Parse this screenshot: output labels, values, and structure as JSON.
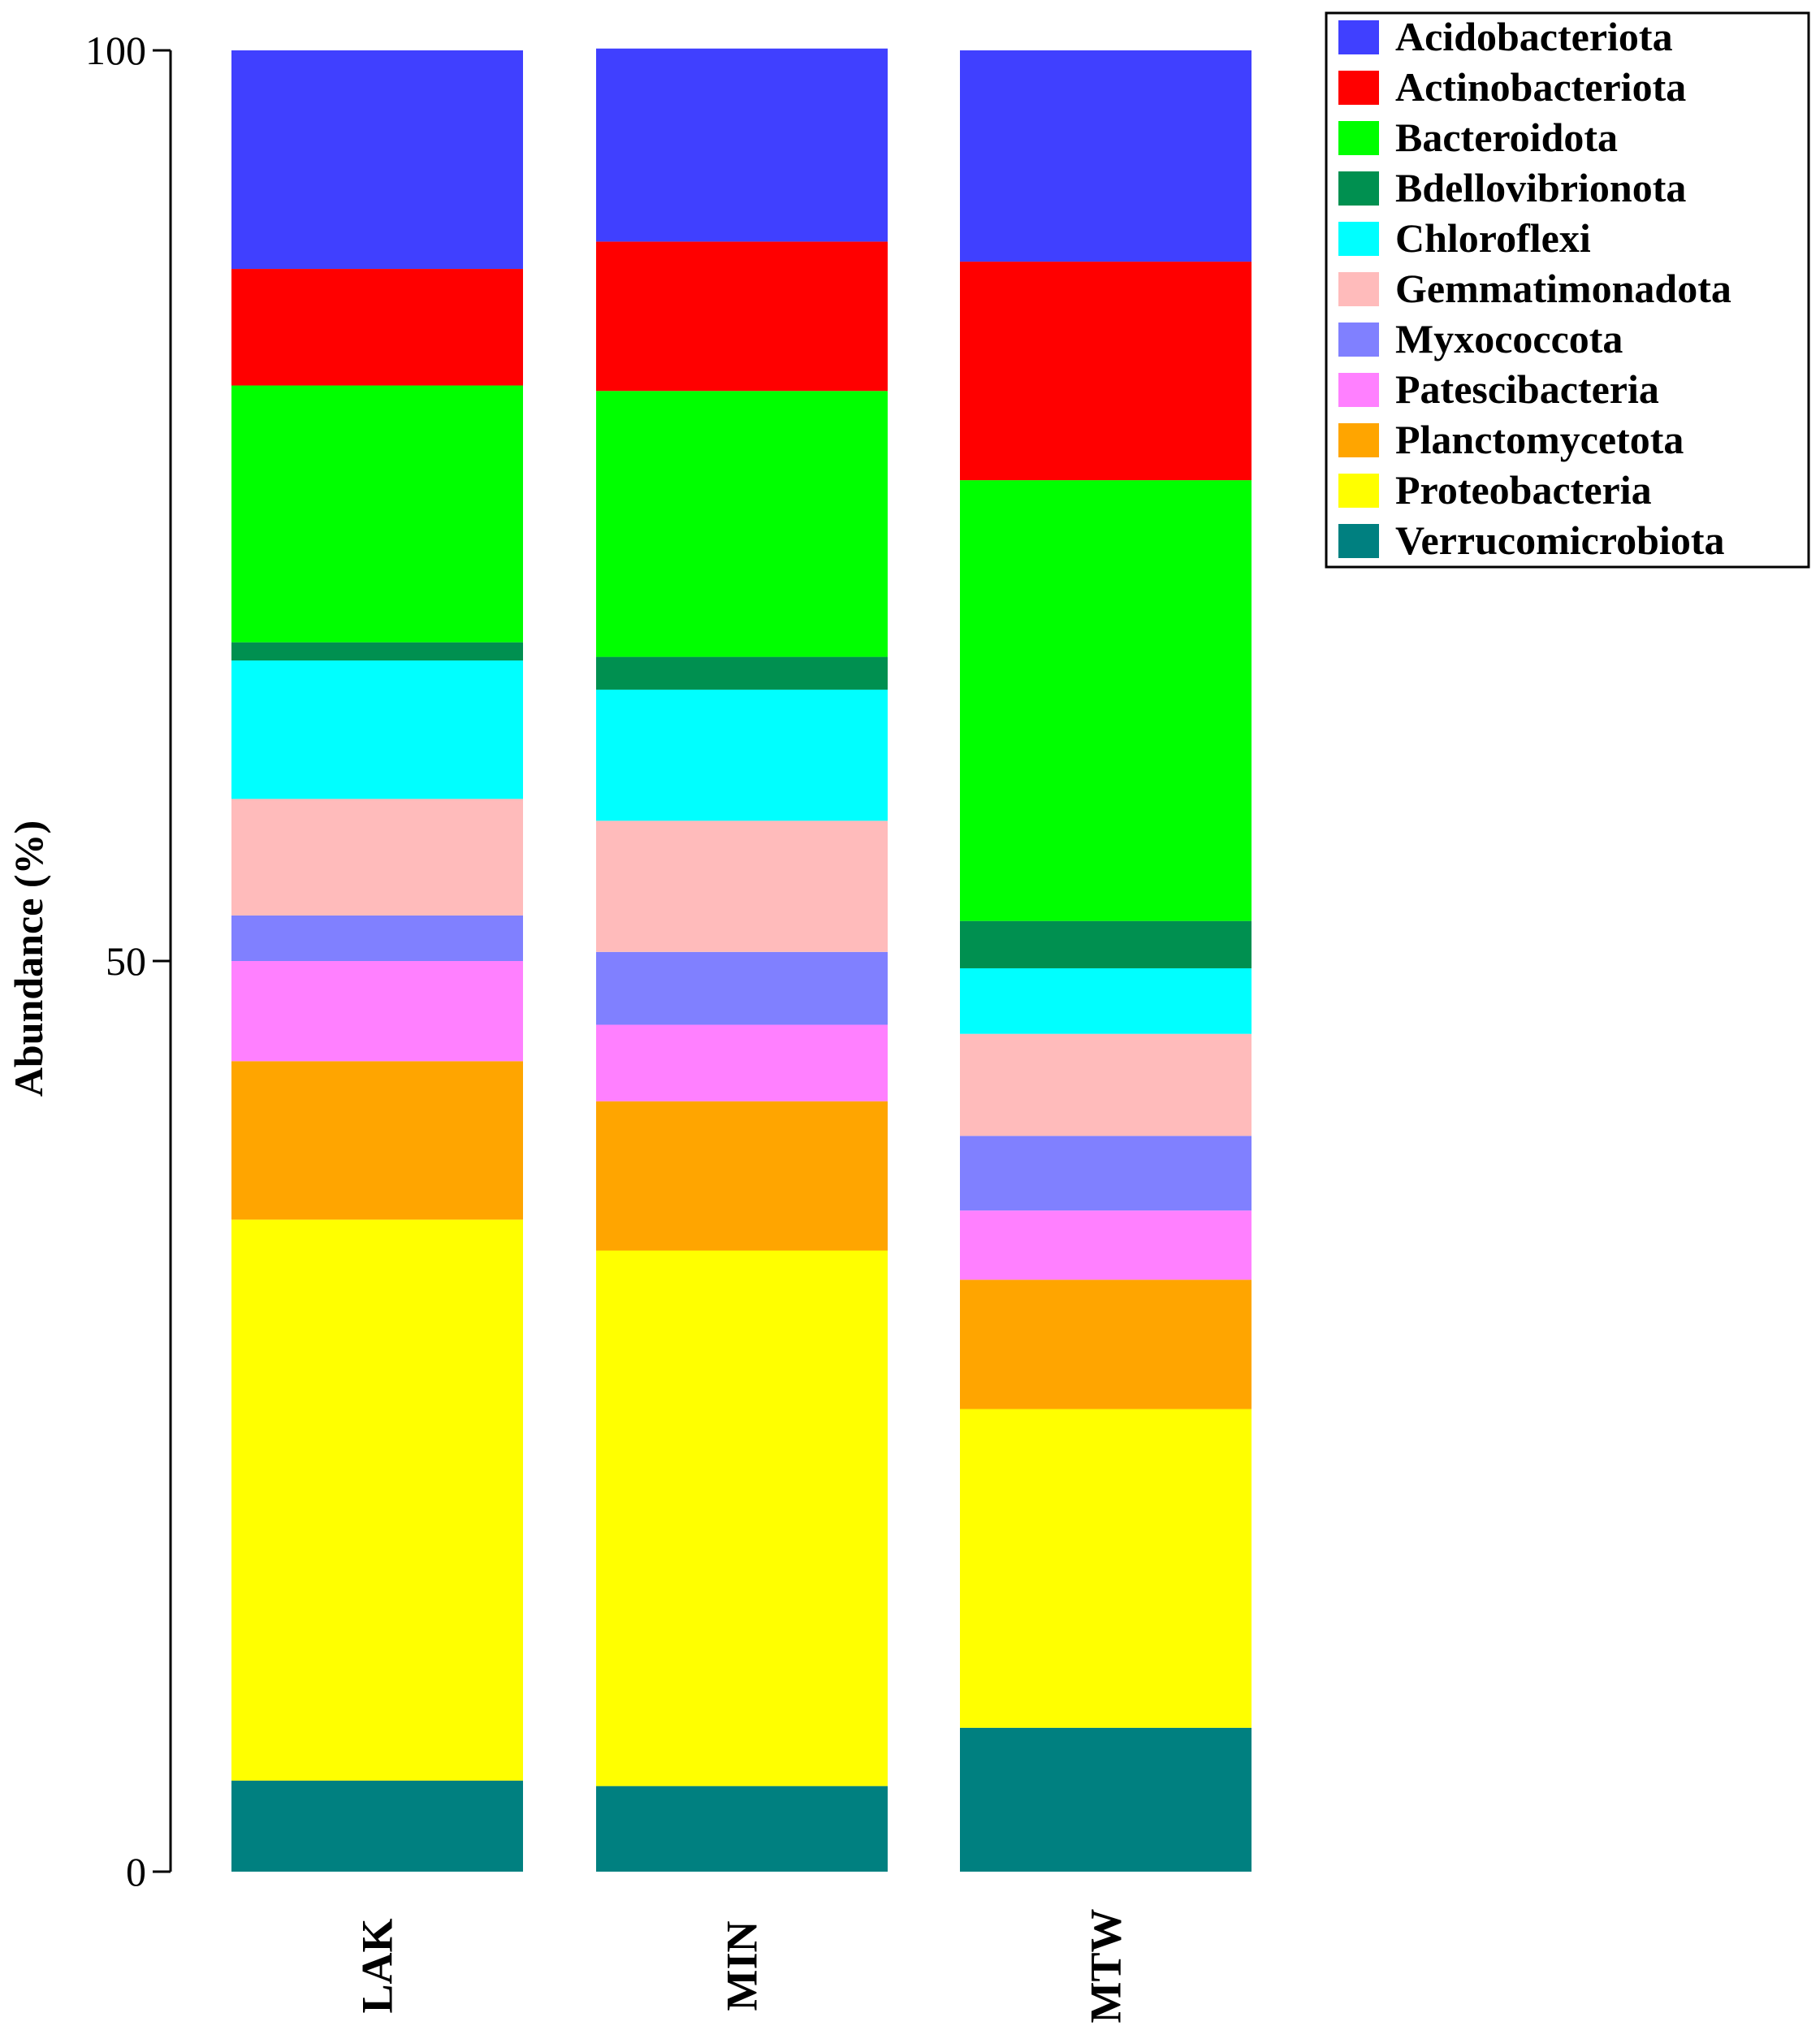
{
  "chart_data": {
    "type": "bar",
    "stacked": true,
    "title": "",
    "xlabel": "",
    "ylabel": "Abundance (%)",
    "ylim": [
      0,
      100
    ],
    "yticks": [
      "0",
      "50",
      "100"
    ],
    "categories": [
      "LAK",
      "MIN",
      "MTW"
    ],
    "legend_position": "top-right",
    "series": [
      {
        "name": "Verrucomicrobiota",
        "color": "#008080",
        "values": [
          5.0,
          4.7,
          7.9
        ]
      },
      {
        "name": "Proteobacteria",
        "color": "#ffff00",
        "values": [
          30.8,
          29.4,
          17.5
        ]
      },
      {
        "name": "Planctomycetota",
        "color": "#ffa500",
        "values": [
          8.7,
          8.2,
          7.1
        ]
      },
      {
        "name": "Patescibacteria",
        "color": "#ff80ff",
        "values": [
          5.5,
          4.2,
          3.8
        ]
      },
      {
        "name": "Myxococcota",
        "color": "#8080ff",
        "values": [
          2.5,
          4.0,
          4.1
        ]
      },
      {
        "name": "Gemmatimonadota",
        "color": "#ffbbbb",
        "values": [
          6.4,
          7.2,
          5.6
        ]
      },
      {
        "name": "Chloroflexi",
        "color": "#00ffff",
        "values": [
          7.6,
          7.2,
          3.6
        ]
      },
      {
        "name": "Bdellovibrionota",
        "color": "#009050",
        "values": [
          1.0,
          1.8,
          2.6
        ]
      },
      {
        "name": "Bacteroidota",
        "color": "#00ff00",
        "values": [
          14.1,
          14.6,
          24.2
        ]
      },
      {
        "name": "Actinobacteriota",
        "color": "#ff0000",
        "values": [
          6.4,
          8.2,
          12.0
        ]
      },
      {
        "name": "Acidobacteriota",
        "color": "#4040ff",
        "values": [
          12.0,
          10.6,
          11.6
        ]
      }
    ]
  }
}
